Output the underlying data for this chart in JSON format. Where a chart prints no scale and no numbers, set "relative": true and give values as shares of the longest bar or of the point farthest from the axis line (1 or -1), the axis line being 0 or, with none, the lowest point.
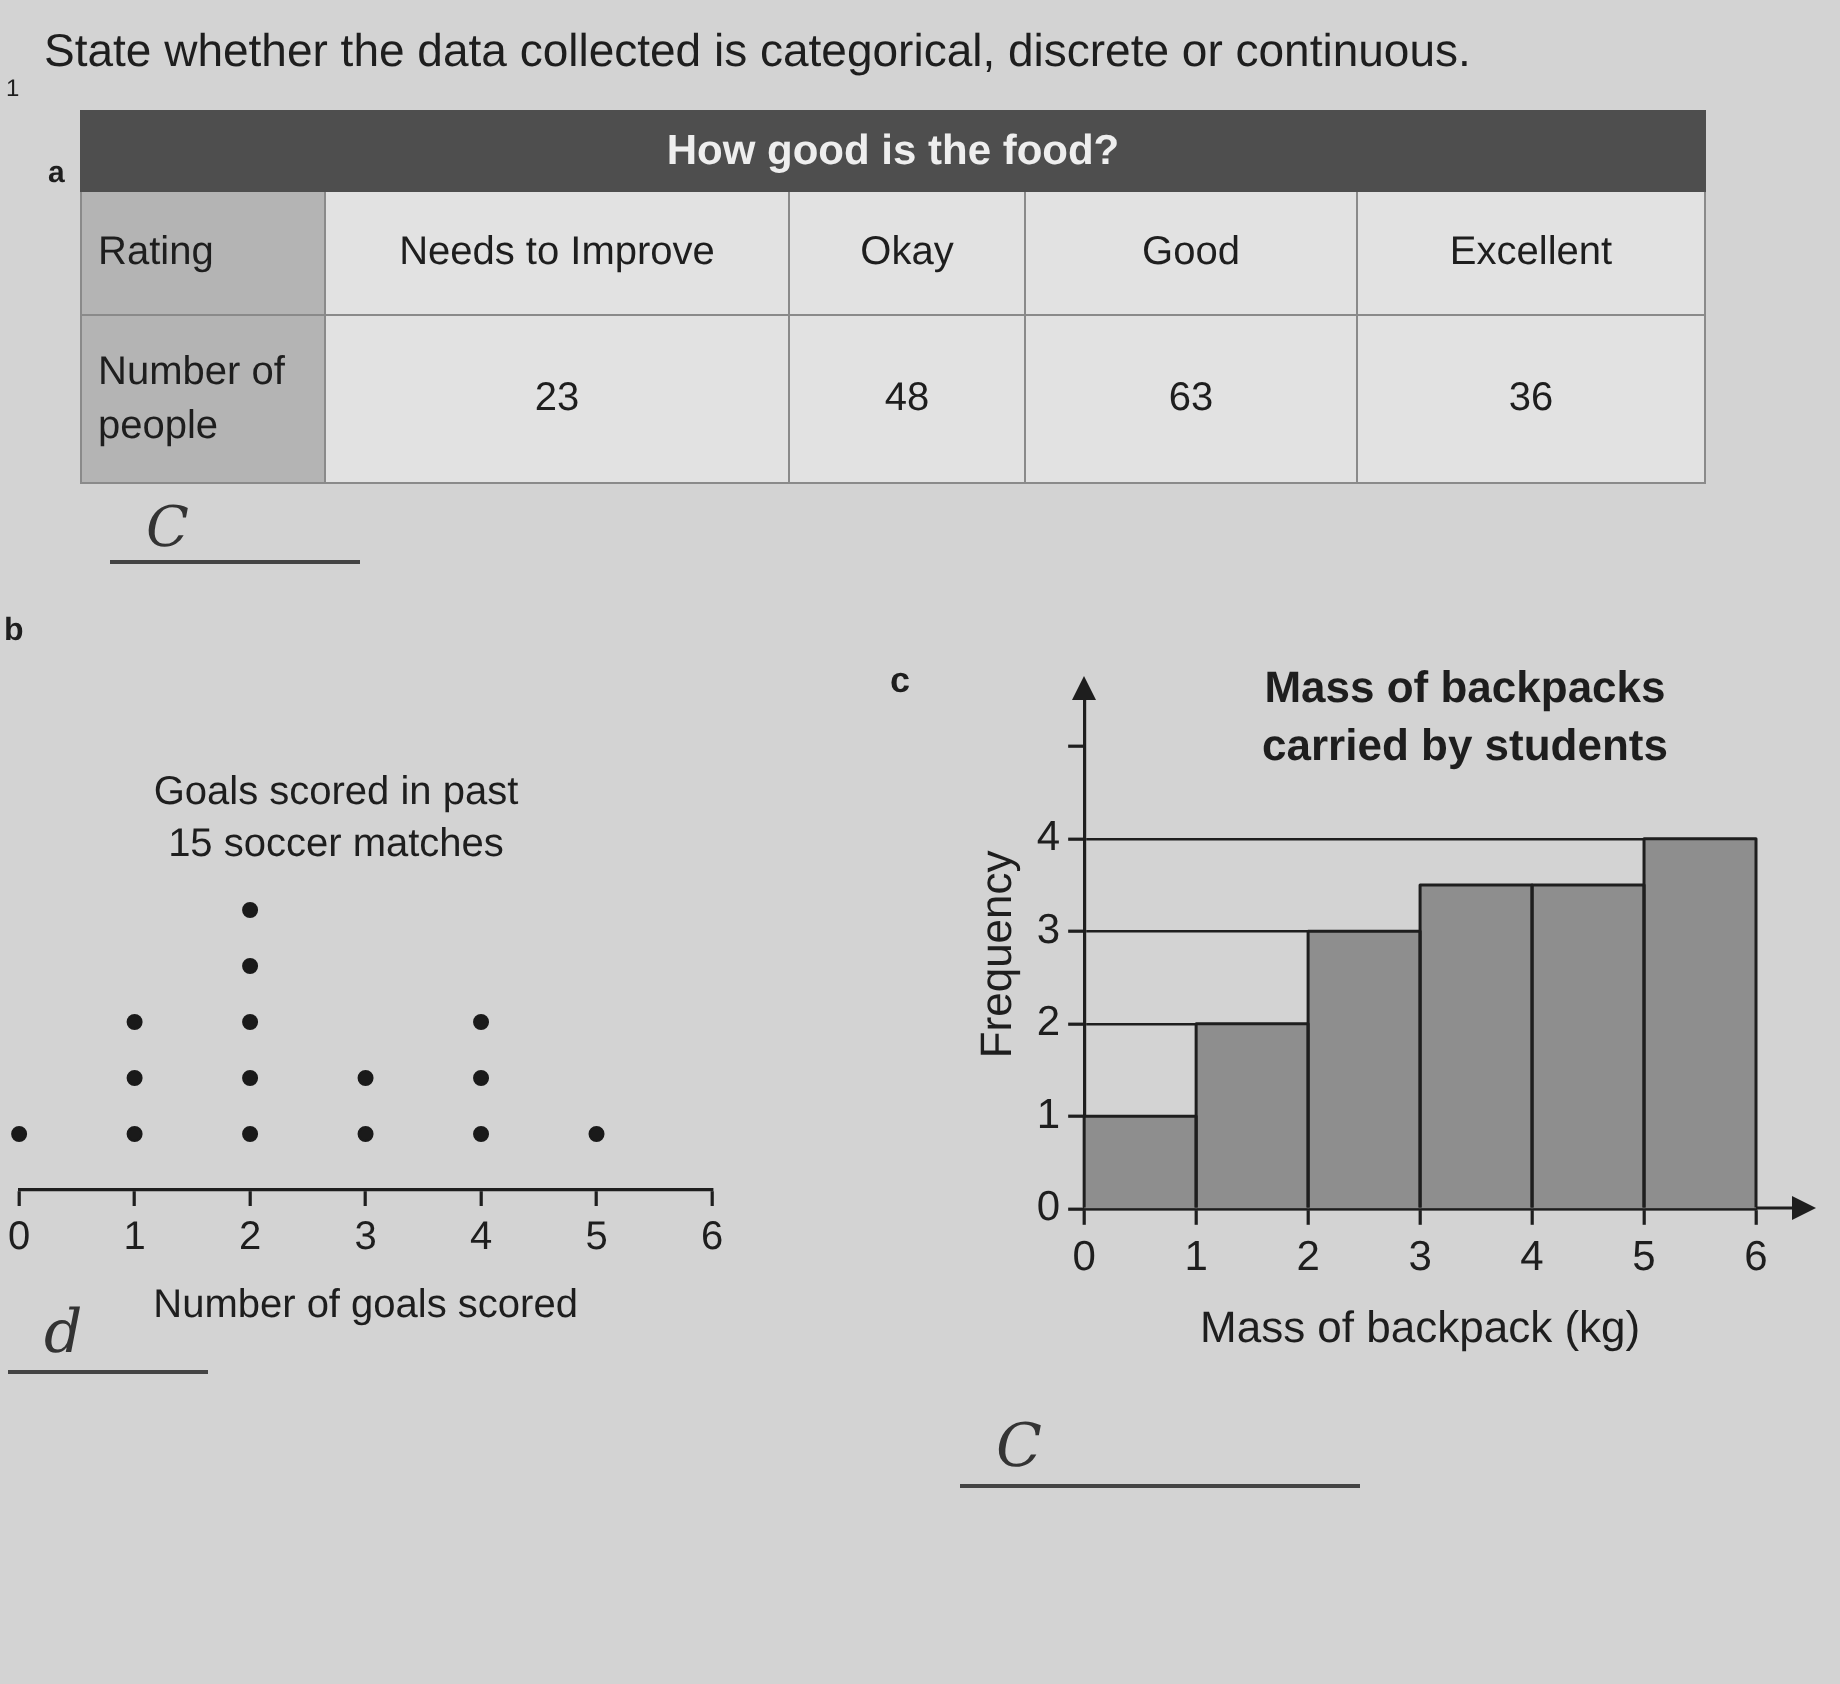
{
  "chart_data": [
    {
      "type": "other",
      "title": "How good is the food?",
      "xlabel": "Rating",
      "ylabel": "Number of people",
      "categories": [
        "Needs to Improve",
        "Okay",
        "Good",
        "Excellent"
      ],
      "values": [
        23,
        48,
        63,
        36
      ],
      "data_labels": true,
      "annotations": [
        "1",
        "State whether the data collected is categorical, discrete or continuous.",
        "a",
        "C"
      ]
    },
    {
      "type": "scatter",
      "title": "Goals scored in past 15 soccer matches",
      "xlabel": "Number of goals scored",
      "x": [
        0,
        1,
        1,
        1,
        2,
        2,
        2,
        2,
        2,
        3,
        3,
        4,
        4,
        4,
        5
      ],
      "values": [
        0.2,
        0.2,
        0.4,
        0.6,
        0.2,
        0.4,
        0.6,
        0.8,
        1,
        0.2,
        0.4,
        0.2,
        0.4,
        0.6,
        0.2
      ],
      "relative": true,
      "color": "#1a1a1a",
      "marker": "circle",
      "xlim": [
        0,
        6
      ],
      "xticks": [
        0,
        1,
        2,
        3,
        4,
        5,
        6
      ],
      "tick_labels": "x",
      "annotations": [
        "b",
        "d"
      ]
    },
    {
      "type": "histogram",
      "title": "Mass of backpacks carried by students",
      "xlabel": "Mass of backpack (kg)",
      "ylabel": "Frequency",
      "bins": [
        0,
        1,
        2,
        3,
        4,
        5,
        6
      ],
      "values": [
        1,
        2,
        3,
        3.5,
        3.5,
        4
      ],
      "color": "#8e8e8e",
      "xlim": [
        0,
        6
      ],
      "xticks": [
        0,
        1,
        2,
        3,
        4,
        5,
        6
      ],
      "ylim": [
        0,
        5.5
      ],
      "yticks": [
        0,
        1,
        2,
        3,
        4,
        {
          "value": 5,
          "label": null
        }
      ],
      "grid": "y",
      "annotations": [
        "c",
        "C"
      ]
    }
  ]
}
